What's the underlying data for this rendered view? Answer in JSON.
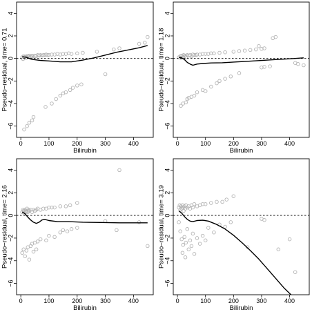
{
  "chart_data": [
    {
      "type": "scatter",
      "xlabel": "Bilirubin",
      "ylabel": "Pseudo−residual, time= 0.71",
      "xlim": [
        -15,
        470
      ],
      "ylim": [
        -7,
        5
      ],
      "xticks": [
        "0",
        "100",
        "200",
        "300",
        "400"
      ],
      "yticks": [
        "−6",
        "−4",
        "−2",
        "0",
        "2",
        "4"
      ],
      "reference_line": 0,
      "points": [
        [
          5,
          0.1
        ],
        [
          8,
          -0.05
        ],
        [
          10,
          0.2
        ],
        [
          12,
          0.1
        ],
        [
          15,
          0.15
        ],
        [
          18,
          0.05
        ],
        [
          20,
          0.2
        ],
        [
          22,
          0.1
        ],
        [
          25,
          0.2
        ],
        [
          28,
          0.15
        ],
        [
          30,
          0.25
        ],
        [
          35,
          0.2
        ],
        [
          38,
          0.1
        ],
        [
          40,
          0.25
        ],
        [
          45,
          0.2
        ],
        [
          50,
          0.25
        ],
        [
          55,
          0.2
        ],
        [
          60,
          0.3
        ],
        [
          65,
          0.25
        ],
        [
          70,
          0.3
        ],
        [
          75,
          0.25
        ],
        [
          80,
          0.3
        ],
        [
          85,
          0.3
        ],
        [
          90,
          0.35
        ],
        [
          95,
          0.3
        ],
        [
          100,
          0.3
        ],
        [
          110,
          0.35
        ],
        [
          120,
          0.35
        ],
        [
          130,
          0.4
        ],
        [
          140,
          0.35
        ],
        [
          150,
          0.4
        ],
        [
          160,
          0.4
        ],
        [
          170,
          0.45
        ],
        [
          180,
          0.4
        ],
        [
          200,
          0.45
        ],
        [
          220,
          0.5
        ],
        [
          270,
          0.6
        ],
        [
          330,
          0.8
        ],
        [
          350,
          0.9
        ],
        [
          420,
          1.3
        ],
        [
          440,
          1.4
        ],
        [
          450,
          1.9
        ],
        [
          12,
          -6.3
        ],
        [
          22,
          -6.0
        ],
        [
          30,
          -5.7
        ],
        [
          40,
          -5.5
        ],
        [
          45,
          -5.2
        ],
        [
          88,
          -4.3
        ],
        [
          110,
          -4.0
        ],
        [
          125,
          -3.6
        ],
        [
          140,
          -3.3
        ],
        [
          150,
          -3.1
        ],
        [
          160,
          -3.0
        ],
        [
          175,
          -2.8
        ],
        [
          185,
          -2.6
        ],
        [
          200,
          -2.4
        ],
        [
          215,
          -2.3
        ],
        [
          300,
          -1.4
        ]
      ],
      "curve": [
        [
          5,
          0.15
        ],
        [
          20,
          0.1
        ],
        [
          35,
          -0.05
        ],
        [
          50,
          -0.12
        ],
        [
          70,
          -0.18
        ],
        [
          100,
          -0.22
        ],
        [
          140,
          -0.3
        ],
        [
          180,
          -0.3
        ],
        [
          220,
          -0.15
        ],
        [
          260,
          0.05
        ],
        [
          300,
          0.3
        ],
        [
          340,
          0.55
        ],
        [
          380,
          0.75
        ],
        [
          420,
          0.95
        ],
        [
          450,
          1.15
        ]
      ]
    },
    {
      "type": "scatter",
      "xlabel": "Bilirubin",
      "ylabel": "Pseudo−residual, time= 1.18",
      "xlim": [
        -15,
        470
      ],
      "ylim": [
        -7,
        5
      ],
      "xticks": [
        "0",
        "100",
        "200",
        "300",
        "400"
      ],
      "yticks": [
        "−6",
        "−4",
        "−2",
        "0",
        "2",
        "4"
      ],
      "reference_line": 0,
      "points": [
        [
          5,
          0.1
        ],
        [
          10,
          0.2
        ],
        [
          12,
          0.05
        ],
        [
          15,
          0.25
        ],
        [
          20,
          0.15
        ],
        [
          22,
          0.3
        ],
        [
          25,
          0.2
        ],
        [
          28,
          0.25
        ],
        [
          30,
          0.1
        ],
        [
          35,
          0.3
        ],
        [
          40,
          0.25
        ],
        [
          45,
          0.3
        ],
        [
          50,
          0.2
        ],
        [
          55,
          0.35
        ],
        [
          60,
          0.3
        ],
        [
          65,
          0.3
        ],
        [
          70,
          0.35
        ],
        [
          80,
          0.35
        ],
        [
          90,
          0.4
        ],
        [
          100,
          0.4
        ],
        [
          110,
          0.4
        ],
        [
          120,
          0.45
        ],
        [
          130,
          0.45
        ],
        [
          150,
          0.5
        ],
        [
          170,
          0.55
        ],
        [
          200,
          0.6
        ],
        [
          220,
          0.65
        ],
        [
          240,
          0.7
        ],
        [
          260,
          0.75
        ],
        [
          280,
          0.8
        ],
        [
          300,
          0.85
        ],
        [
          310,
          0.9
        ],
        [
          290,
          1.1
        ],
        [
          340,
          1.8
        ],
        [
          350,
          1.9
        ],
        [
          12,
          -4.2
        ],
        [
          20,
          -4.0
        ],
        [
          30,
          -3.9
        ],
        [
          35,
          -3.6
        ],
        [
          40,
          -3.5
        ],
        [
          50,
          -3.4
        ],
        [
          60,
          -3.3
        ],
        [
          70,
          -3.0
        ],
        [
          90,
          -2.8
        ],
        [
          100,
          -2.9
        ],
        [
          120,
          -2.5
        ],
        [
          140,
          -2.2
        ],
        [
          150,
          -2.0
        ],
        [
          170,
          -1.8
        ],
        [
          190,
          -1.6
        ],
        [
          220,
          -1.3
        ],
        [
          300,
          -0.8
        ],
        [
          310,
          -0.75
        ],
        [
          330,
          -0.7
        ],
        [
          430,
          -0.5
        ],
        [
          450,
          -0.6
        ],
        [
          420,
          -0.4
        ]
      ],
      "curve": [
        [
          5,
          0.1
        ],
        [
          15,
          0.05
        ],
        [
          25,
          -0.1
        ],
        [
          35,
          -0.35
        ],
        [
          45,
          -0.5
        ],
        [
          55,
          -0.6
        ],
        [
          70,
          -0.5
        ],
        [
          90,
          -0.45
        ],
        [
          120,
          -0.4
        ],
        [
          160,
          -0.38
        ],
        [
          200,
          -0.32
        ],
        [
          250,
          -0.25
        ],
        [
          300,
          -0.18
        ],
        [
          350,
          -0.1
        ],
        [
          400,
          -0.03
        ],
        [
          450,
          0.05
        ]
      ]
    },
    {
      "type": "scatter",
      "xlabel": "Bilirubin",
      "ylabel": "Pseudo−residual, time= 2.16",
      "xlim": [
        -15,
        470
      ],
      "ylim": [
        -7,
        5
      ],
      "xticks": [
        "0",
        "100",
        "200",
        "300",
        "400"
      ],
      "yticks": [
        "−6",
        "−4",
        "−2",
        "0",
        "2",
        "4"
      ],
      "reference_line": 0,
      "points": [
        [
          5,
          0.3
        ],
        [
          8,
          0.5
        ],
        [
          10,
          0.4
        ],
        [
          12,
          0.2
        ],
        [
          15,
          0.5
        ],
        [
          18,
          0.3
        ],
        [
          20,
          0.4
        ],
        [
          22,
          0.6
        ],
        [
          25,
          0.3
        ],
        [
          28,
          0.5
        ],
        [
          30,
          0.4
        ],
        [
          35,
          0.5
        ],
        [
          40,
          0.3
        ],
        [
          45,
          0.5
        ],
        [
          50,
          0.4
        ],
        [
          55,
          0.5
        ],
        [
          60,
          0.6
        ],
        [
          70,
          0.5
        ],
        [
          80,
          0.6
        ],
        [
          90,
          0.6
        ],
        [
          100,
          0.7
        ],
        [
          110,
          0.7
        ],
        [
          120,
          0.7
        ],
        [
          140,
          0.8
        ],
        [
          160,
          0.8
        ],
        [
          175,
          0.9
        ],
        [
          200,
          1.1
        ],
        [
          350,
          4.0
        ],
        [
          5,
          -3.3
        ],
        [
          10,
          -3.0
        ],
        [
          15,
          -3.6
        ],
        [
          20,
          -3.1
        ],
        [
          25,
          -2.8
        ],
        [
          30,
          -3.9
        ],
        [
          35,
          -2.7
        ],
        [
          40,
          -2.5
        ],
        [
          45,
          -3.2
        ],
        [
          50,
          -2.4
        ],
        [
          55,
          -3.0
        ],
        [
          60,
          -2.3
        ],
        [
          70,
          -2.1
        ],
        [
          90,
          -2.2
        ],
        [
          100,
          -1.8
        ],
        [
          120,
          -1.9
        ],
        [
          140,
          -1.5
        ],
        [
          150,
          -1.3
        ],
        [
          165,
          -1.4
        ],
        [
          180,
          -1.2
        ],
        [
          200,
          -1.1
        ],
        [
          300,
          -0.5
        ],
        [
          340,
          -1.3
        ],
        [
          420,
          -0.6
        ],
        [
          450,
          -2.7
        ]
      ],
      "curve": [
        [
          5,
          0.3
        ],
        [
          15,
          0.15
        ],
        [
          25,
          -0.15
        ],
        [
          35,
          -0.4
        ],
        [
          45,
          -0.6
        ],
        [
          55,
          -0.7
        ],
        [
          65,
          -0.6
        ],
        [
          75,
          -0.4
        ],
        [
          85,
          -0.35
        ],
        [
          100,
          -0.45
        ],
        [
          130,
          -0.55
        ],
        [
          170,
          -0.55
        ],
        [
          220,
          -0.6
        ],
        [
          280,
          -0.62
        ],
        [
          350,
          -0.65
        ],
        [
          420,
          -0.65
        ],
        [
          450,
          -0.65
        ]
      ]
    },
    {
      "type": "scatter",
      "xlabel": "Bilirubin",
      "ylabel": "Pseudo−residual, time= 3.19",
      "xlim": [
        -15,
        470
      ],
      "ylim": [
        -7,
        5
      ],
      "xticks": [
        "0",
        "100",
        "200",
        "300",
        "400"
      ],
      "yticks": [
        "−6",
        "−4",
        "−2",
        "0",
        "2",
        "4"
      ],
      "reference_line": 0,
      "points": [
        [
          5,
          0.7
        ],
        [
          8,
          0.9
        ],
        [
          10,
          0.5
        ],
        [
          12,
          0.8
        ],
        [
          15,
          0.6
        ],
        [
          18,
          0.9
        ],
        [
          20,
          0.7
        ],
        [
          22,
          0.4
        ],
        [
          25,
          0.8
        ],
        [
          28,
          0.6
        ],
        [
          30,
          0.9
        ],
        [
          35,
          0.7
        ],
        [
          40,
          0.8
        ],
        [
          45,
          0.6
        ],
        [
          50,
          0.9
        ],
        [
          55,
          0.7
        ],
        [
          60,
          1.0
        ],
        [
          70,
          0.8
        ],
        [
          80,
          0.9
        ],
        [
          90,
          1.0
        ],
        [
          100,
          1.0
        ],
        [
          120,
          1.1
        ],
        [
          140,
          1.2
        ],
        [
          160,
          1.2
        ],
        [
          175,
          1.4
        ],
        [
          200,
          1.7
        ],
        [
          5,
          -0.6
        ],
        [
          10,
          -1.4
        ],
        [
          15,
          -2.1
        ],
        [
          18,
          -3.3
        ],
        [
          20,
          -2.6
        ],
        [
          25,
          -1.9
        ],
        [
          28,
          -3.7
        ],
        [
          30,
          -2.4
        ],
        [
          35,
          -1.2
        ],
        [
          40,
          -3.0
        ],
        [
          45,
          -2.2
        ],
        [
          50,
          -2.7
        ],
        [
          55,
          -1.6
        ],
        [
          60,
          -3.4
        ],
        [
          70,
          -2.0
        ],
        [
          80,
          -2.5
        ],
        [
          90,
          -1.8
        ],
        [
          100,
          -2.2
        ],
        [
          110,
          -1.1
        ],
        [
          130,
          -1.5
        ],
        [
          150,
          -0.8
        ],
        [
          170,
          -1.0
        ],
        [
          190,
          -0.6
        ],
        [
          250,
          -2.8
        ],
        [
          300,
          -0.3
        ],
        [
          310,
          -0.4
        ],
        [
          360,
          -3.0
        ],
        [
          400,
          -2.1
        ],
        [
          420,
          -5.0
        ]
      ],
      "curve": [
        [
          5,
          0.4
        ],
        [
          15,
          0.2
        ],
        [
          25,
          -0.1
        ],
        [
          35,
          -0.35
        ],
        [
          45,
          -0.5
        ],
        [
          55,
          -0.55
        ],
        [
          70,
          -0.45
        ],
        [
          90,
          -0.42
        ],
        [
          110,
          -0.5
        ],
        [
          140,
          -0.8
        ],
        [
          170,
          -1.2
        ],
        [
          200,
          -1.75
        ],
        [
          230,
          -2.4
        ],
        [
          260,
          -3.1
        ],
        [
          290,
          -3.85
        ],
        [
          320,
          -4.7
        ],
        [
          350,
          -5.55
        ],
        [
          380,
          -6.4
        ],
        [
          405,
          -7.0
        ]
      ]
    }
  ]
}
